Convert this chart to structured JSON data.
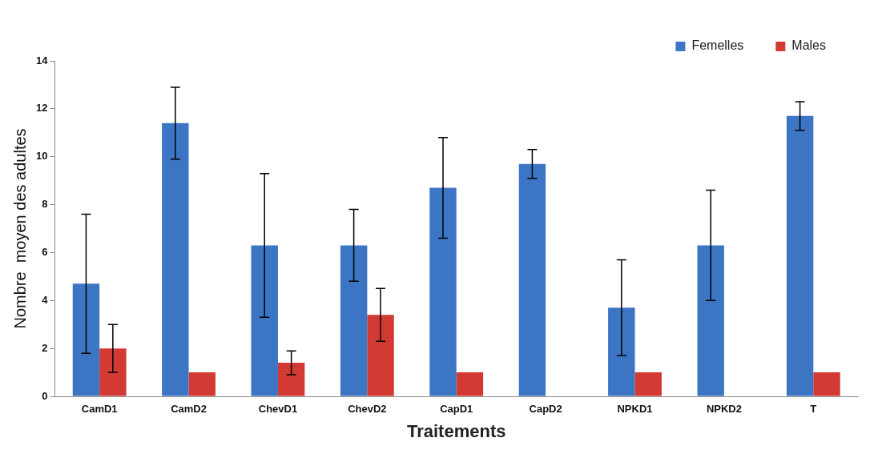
{
  "chart_data": {
    "type": "bar",
    "xlabel": "Traitements",
    "ylabel": "Nombre  moyen des adultes",
    "categories": [
      "CamD1",
      "CamD2",
      "ChevD1",
      "ChevD2",
      "CapD1",
      "CapD2",
      "NPKD1",
      "NPKD2",
      "T"
    ],
    "series": [
      {
        "name": "Femelles",
        "color": "#3b75c4",
        "values": [
          4.7,
          11.4,
          6.3,
          6.3,
          8.7,
          9.7,
          3.7,
          6.3,
          11.7
        ],
        "errors": [
          2.9,
          1.5,
          3.0,
          1.5,
          2.1,
          0.6,
          2.0,
          2.3,
          0.6
        ]
      },
      {
        "name": "Males",
        "color": "#d23a33",
        "values": [
          2.0,
          1.0,
          1.4,
          3.4,
          1.0,
          null,
          1.0,
          null,
          1.0
        ],
        "errors": [
          1.0,
          null,
          0.5,
          1.1,
          null,
          null,
          null,
          null,
          null
        ]
      }
    ],
    "ylim": [
      0,
      14
    ],
    "yticks": [
      0,
      2,
      4,
      6,
      8,
      10,
      12,
      14
    ],
    "grid": false,
    "legend": "top right"
  }
}
